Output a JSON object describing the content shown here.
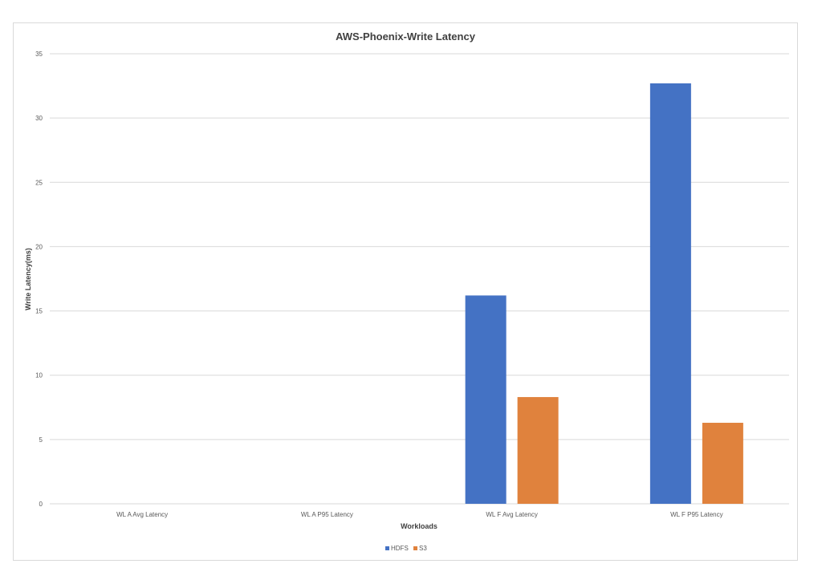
{
  "chart_data": {
    "type": "bar",
    "title": "AWS-Phoenix-Write Latency",
    "xlabel": "Workloads",
    "ylabel": "Write Latency(ms)",
    "categories": [
      "WL A Avg Latency",
      "WL A P95 Latency",
      "WL F Avg Latency",
      "WL F P95 Latency"
    ],
    "series": [
      {
        "name": "HDFS",
        "values": [
          0,
          0,
          16.2,
          32.7
        ],
        "color": "#4472c4"
      },
      {
        "name": "S3",
        "values": [
          0,
          0,
          8.3,
          6.3
        ],
        "color": "#e0823d"
      }
    ],
    "ylim": [
      0,
      35
    ],
    "yticks": [
      0,
      5,
      10,
      15,
      20,
      25,
      30,
      35
    ],
    "grid": true,
    "legend": "bottom-center"
  }
}
